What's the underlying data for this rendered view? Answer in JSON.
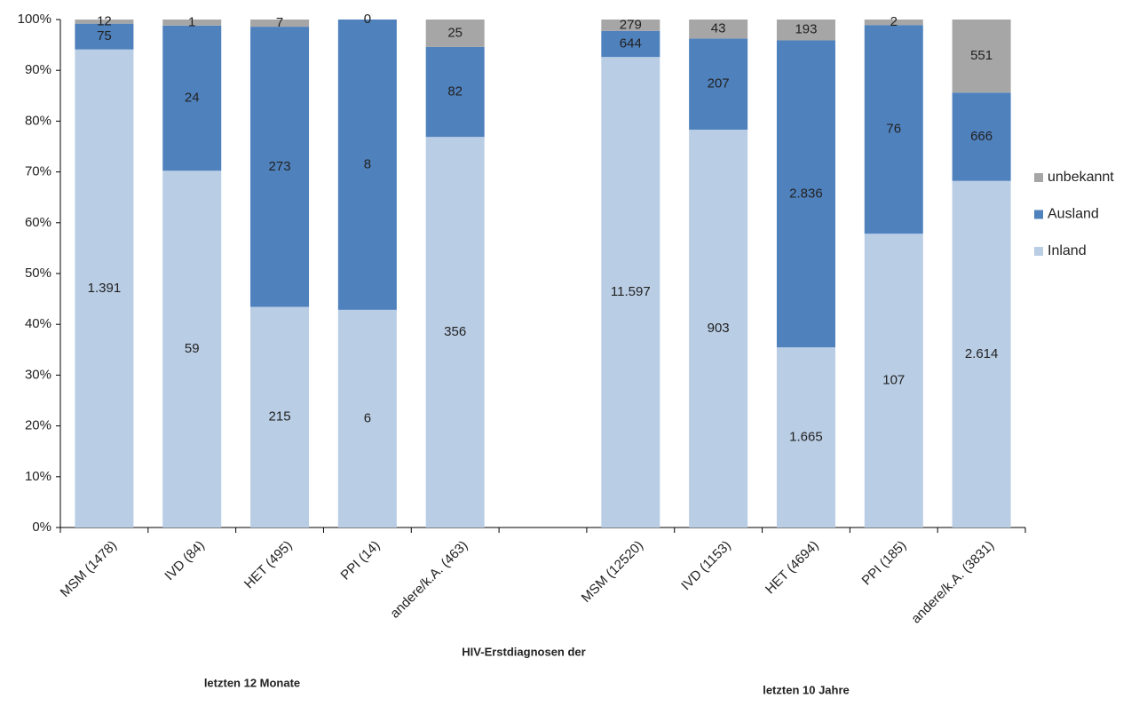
{
  "chart_data": {
    "type": "bar",
    "stacked": "percent",
    "categories": [
      "MSM (1478)",
      "IVD (84)",
      "HET (495)",
      "PPI (14)",
      "andere/k.A. (463)",
      null,
      "MSM (12520)",
      "IVD (1153)",
      "HET (4694)",
      "PPI (185)",
      "andere/k.A. (3831)"
    ],
    "series": [
      {
        "name": "Inland",
        "color": "#b9cde5",
        "values": [
          1391,
          59,
          215,
          6,
          356,
          null,
          11597,
          903,
          1665,
          107,
          2614
        ],
        "value_labels": [
          "1.391",
          "59",
          "215",
          "6",
          "356",
          null,
          "11.597",
          "903",
          "1.665",
          "107",
          "2.614"
        ]
      },
      {
        "name": "Ausland",
        "color": "#4f81bd",
        "values": [
          75,
          24,
          273,
          8,
          82,
          null,
          644,
          207,
          2836,
          76,
          666
        ],
        "value_labels": [
          "75",
          "24",
          "273",
          "8",
          "82",
          null,
          "644",
          "207",
          "2.836",
          "76",
          "666"
        ]
      },
      {
        "name": "unbekannt",
        "color": "#a6a6a6",
        "values": [
          12,
          1,
          7,
          0,
          25,
          null,
          279,
          43,
          193,
          2,
          551
        ]
      }
    ],
    "ylim": [
      0,
      100
    ],
    "yticks": [
      {
        "value": 0,
        "label": "0%"
      },
      {
        "value": 10,
        "label": "10%"
      },
      {
        "value": 20,
        "label": "20%"
      },
      {
        "value": 30,
        "label": "30%"
      },
      {
        "value": 40,
        "label": "40%"
      },
      {
        "value": 50,
        "label": "50%"
      },
      {
        "value": 60,
        "label": "60%"
      },
      {
        "value": 70,
        "label": "70%"
      },
      {
        "value": 80,
        "label": "80%"
      },
      {
        "value": 90,
        "label": "90%"
      },
      {
        "value": 100,
        "label": "100%"
      }
    ],
    "xlabel": "HIV-Erstdiagnosen der",
    "group_labels": [
      "letzten 12 Monate",
      "letzten 10 Jahre"
    ],
    "legend": "right"
  }
}
